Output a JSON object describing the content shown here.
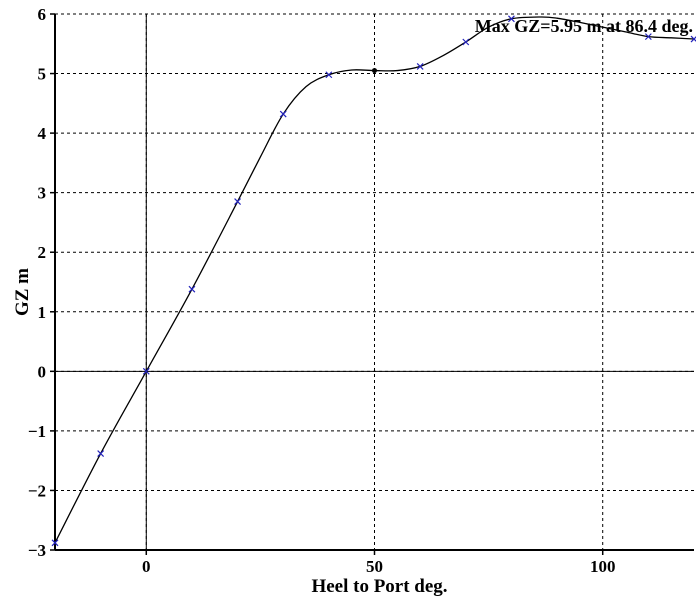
{
  "chart_data": {
    "type": "line",
    "title": "",
    "xlabel": "Heel to Port deg.",
    "ylabel": "GZ m",
    "xlim": [
      -20,
      120
    ],
    "ylim": [
      -3,
      6
    ],
    "grid": true,
    "grid_style": "dotted",
    "x_ticks": [
      0,
      50,
      100
    ],
    "x_tick_labels": [
      "0",
      "50",
      "100"
    ],
    "y_ticks": [
      -3,
      -2,
      -1,
      0,
      1,
      2,
      3,
      4,
      5,
      6
    ],
    "y_tick_labels": [
      "−3",
      "−2",
      "−1",
      "0",
      "1",
      "2",
      "3",
      "4",
      "5",
      "6"
    ],
    "series": [
      {
        "color": "#000000",
        "x": [
          -20,
          -10,
          0,
          10,
          20,
          25,
          30,
          35,
          40,
          45,
          50,
          55,
          60,
          65,
          70,
          75,
          80,
          86.4,
          90,
          95,
          100,
          105,
          110,
          115,
          120
        ],
        "y": [
          -2.88,
          -1.38,
          0.0,
          1.38,
          2.85,
          3.6,
          4.32,
          4.78,
          4.98,
          5.06,
          5.05,
          5.05,
          5.12,
          5.3,
          5.53,
          5.78,
          5.92,
          5.95,
          5.93,
          5.86,
          5.78,
          5.7,
          5.62,
          5.6,
          5.58
        ]
      }
    ],
    "markers": {
      "color": "#2222bb",
      "symbol": "x",
      "x": [
        -20,
        -10,
        0,
        10,
        20,
        30,
        40,
        60,
        70,
        80,
        110,
        120
      ],
      "y": [
        -2.88,
        -1.38,
        0.0,
        1.38,
        2.85,
        4.32,
        4.98,
        5.12,
        5.53,
        5.92,
        5.62,
        5.58
      ]
    },
    "highlight_point": {
      "x": 50,
      "y": 5.05
    },
    "annotation": "Max GZ=5.95 m at 86.4 deg."
  }
}
